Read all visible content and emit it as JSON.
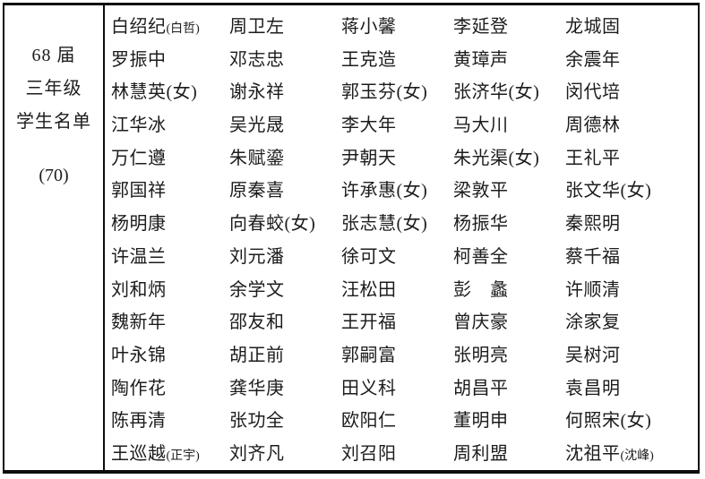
{
  "colors": {
    "background": "#ffffff",
    "border": "#0c0c0c",
    "text": "#1c1c1c"
  },
  "header": {
    "lines": [
      "68 届",
      "三年级",
      "学生名单",
      "(70)"
    ]
  },
  "roster": {
    "rows": [
      [
        {
          "main": "白绍纪",
          "note": "(白哲)"
        },
        {
          "main": "周卫左"
        },
        {
          "main": "蒋小馨"
        },
        {
          "main": "李延登"
        },
        {
          "main": "龙城固"
        }
      ],
      [
        {
          "main": "罗振中"
        },
        {
          "main": "邓志忠"
        },
        {
          "main": "王克造"
        },
        {
          "main": "黄璋声"
        },
        {
          "main": "余震年"
        }
      ],
      [
        {
          "main": "林慧英(女)"
        },
        {
          "main": "谢永祥"
        },
        {
          "main": "郭玉芬(女)"
        },
        {
          "main": "张济华(女)"
        },
        {
          "main": "闵代培"
        }
      ],
      [
        {
          "main": "江华冰"
        },
        {
          "main": "吴光晟"
        },
        {
          "main": "李大年"
        },
        {
          "main": "马大川"
        },
        {
          "main": "周德林"
        }
      ],
      [
        {
          "main": "万仁遵"
        },
        {
          "main": "朱赋鎏"
        },
        {
          "main": "尹朝天"
        },
        {
          "main": "朱光渠(女)"
        },
        {
          "main": "王礼平"
        }
      ],
      [
        {
          "main": "郭国祥"
        },
        {
          "main": "原秦喜"
        },
        {
          "main": "许承惠(女)"
        },
        {
          "main": "梁敦平"
        },
        {
          "main": "张文华(女)"
        }
      ],
      [
        {
          "main": "杨明康"
        },
        {
          "main": "向春蛟(女)"
        },
        {
          "main": "张志慧(女)"
        },
        {
          "main": "杨振华"
        },
        {
          "main": "秦熙明"
        }
      ],
      [
        {
          "main": "许温兰"
        },
        {
          "main": "刘元潘"
        },
        {
          "main": "徐可文"
        },
        {
          "main": "柯善全"
        },
        {
          "main": "蔡千福"
        }
      ],
      [
        {
          "main": "刘和炳"
        },
        {
          "main": "余学文"
        },
        {
          "main": "汪松田"
        },
        {
          "main": "彭　蠡"
        },
        {
          "main": "许顺清"
        }
      ],
      [
        {
          "main": "魏新年"
        },
        {
          "main": "邵友和"
        },
        {
          "main": "王开福"
        },
        {
          "main": "曾庆豪"
        },
        {
          "main": "涂家复"
        }
      ],
      [
        {
          "main": "叶永锦"
        },
        {
          "main": "胡正前"
        },
        {
          "main": "郭嗣富"
        },
        {
          "main": "张明亮"
        },
        {
          "main": "吴树河"
        }
      ],
      [
        {
          "main": "陶作花"
        },
        {
          "main": "龚华庚"
        },
        {
          "main": "田义科"
        },
        {
          "main": "胡昌平"
        },
        {
          "main": "袁昌明"
        }
      ],
      [
        {
          "main": "陈再清"
        },
        {
          "main": "张功全"
        },
        {
          "main": "欧阳仁"
        },
        {
          "main": "董明申"
        },
        {
          "main": "何照宋(女)"
        }
      ],
      [
        {
          "main": "王巡越",
          "note": "(正宇)"
        },
        {
          "main": "刘齐凡"
        },
        {
          "main": "刘召阳"
        },
        {
          "main": "周利盟"
        },
        {
          "main": "沈祖平",
          "note": "(沈峰)"
        }
      ]
    ]
  }
}
